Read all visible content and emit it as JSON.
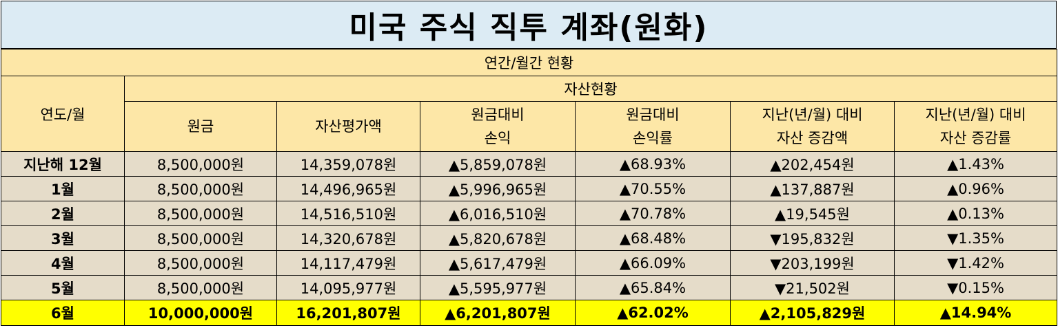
{
  "title": "미국 주식 직투 계좌(원화)",
  "section": "연간/월간 현황",
  "header": {
    "period": "연도/월",
    "group": "자산현황",
    "columns": [
      {
        "line1": "원금",
        "line2": ""
      },
      {
        "line1": "자산평가액",
        "line2": ""
      },
      {
        "line1": "원금대비",
        "line2": "손익"
      },
      {
        "line1": "원금대비",
        "line2": "손익률"
      },
      {
        "line1": "지난(년/월) 대비",
        "line2": "자산 증감액"
      },
      {
        "line1": "지난(년/월) 대비",
        "line2": "자산 증감률"
      }
    ]
  },
  "rows": [
    {
      "period": "지난해 12월",
      "principal": "8,500,000원",
      "asset": "14,359,078원",
      "pl": "▲5,859,078원",
      "pl_rate": "▲68.93%",
      "change": "▲202,454원",
      "change_rate": "▲1.43%",
      "change_dir": "up"
    },
    {
      "period": "1월",
      "principal": "8,500,000원",
      "asset": "14,496,965원",
      "pl": "▲5,996,965원",
      "pl_rate": "▲70.55%",
      "change": "▲137,887원",
      "change_rate": "▲0.96%",
      "change_dir": "up"
    },
    {
      "period": "2월",
      "principal": "8,500,000원",
      "asset": "14,516,510원",
      "pl": "▲6,016,510원",
      "pl_rate": "▲70.78%",
      "change": "▲19,545원",
      "change_rate": "▲0.13%",
      "change_dir": "up"
    },
    {
      "period": "3월",
      "principal": "8,500,000원",
      "asset": "14,320,678원",
      "pl": "▲5,820,678원",
      "pl_rate": "▲68.48%",
      "change": "▼195,832원",
      "change_rate": "▼1.35%",
      "change_dir": "down"
    },
    {
      "period": "4월",
      "principal": "8,500,000원",
      "asset": "14,117,479원",
      "pl": "▲5,617,479원",
      "pl_rate": "▲66.09%",
      "change": "▼203,199원",
      "change_rate": "▼1.42%",
      "change_dir": "down"
    },
    {
      "period": "5월",
      "principal": "8,500,000원",
      "asset": "14,095,977원",
      "pl": "▲5,595,977원",
      "pl_rate": "▲65.84%",
      "change": "▼21,502원",
      "change_rate": "▼0.15%",
      "change_dir": "down"
    },
    {
      "period": "6월",
      "principal": "10,000,000원",
      "asset": "16,201,807원",
      "pl": "▲6,201,807원",
      "pl_rate": "▲62.02%",
      "change": "▲2,105,829원",
      "change_rate": "▲14.94%",
      "change_dir": "up"
    }
  ],
  "colors": {
    "title_bg": "#dcebf4",
    "header_bg": "#fde7a7",
    "row_bg": "#e5dcc9",
    "highlight_bg": "#ffff00",
    "up": "#ff0000",
    "down": "#0000ff"
  }
}
